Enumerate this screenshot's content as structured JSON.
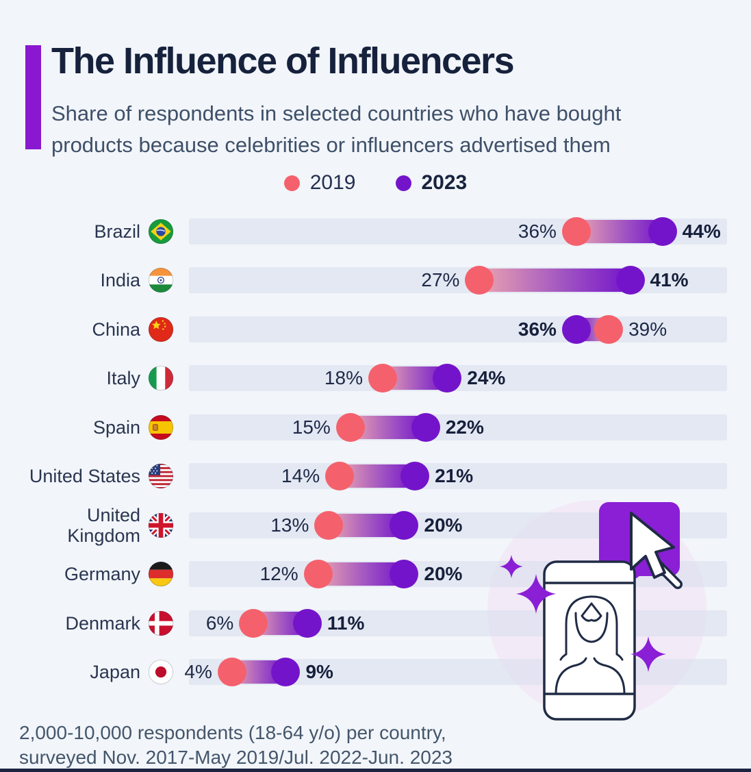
{
  "header": {
    "title": "The Influence of Influencers",
    "subtitle_line1": "Share of respondents in selected countries who have bought",
    "subtitle_line2": "products because celebrities or influencers advertised them",
    "accent_color": "#8a18d0"
  },
  "legend": {
    "items": [
      {
        "label": "2019",
        "color": "#f4616c"
      },
      {
        "label": "2023",
        "color": "#7414ca"
      }
    ]
  },
  "chart_data": {
    "type": "dumbbell",
    "title": "The Influence of Influencers",
    "unit": "%",
    "xlim": [
      0,
      50
    ],
    "grid": false,
    "legend_position": "top-center",
    "categories": [
      "Brazil",
      "India",
      "China",
      "Italy",
      "Spain",
      "United States",
      "United Kingdom",
      "Germany",
      "Denmark",
      "Japan"
    ],
    "series": [
      {
        "name": "2019",
        "color": "#f4616c",
        "values": [
          36,
          27,
          39,
          18,
          15,
          14,
          13,
          12,
          6,
          4
        ]
      },
      {
        "name": "2023",
        "color": "#7414ca",
        "values": [
          44,
          41,
          36,
          24,
          22,
          21,
          20,
          20,
          11,
          9
        ]
      }
    ],
    "rows": [
      {
        "country": "Brazil",
        "flag": "brazil",
        "v2019": 36,
        "v2023": 44
      },
      {
        "country": "India",
        "flag": "india",
        "v2019": 27,
        "v2023": 41
      },
      {
        "country": "China",
        "flag": "china",
        "v2019": 39,
        "v2023": 36
      },
      {
        "country": "Italy",
        "flag": "italy",
        "v2019": 18,
        "v2023": 24
      },
      {
        "country": "Spain",
        "flag": "spain",
        "v2019": 15,
        "v2023": 22
      },
      {
        "country": "United States",
        "flag": "us",
        "v2019": 14,
        "v2023": 21
      },
      {
        "country": "United\nKingdom",
        "flag": "uk",
        "v2019": 13,
        "v2023": 20
      },
      {
        "country": "Germany",
        "flag": "germany",
        "v2019": 12,
        "v2023": 20
      },
      {
        "country": "Denmark",
        "flag": "denmark",
        "v2019": 6,
        "v2023": 11
      },
      {
        "country": "Japan",
        "flag": "japan",
        "v2019": 4,
        "v2023": 9
      }
    ]
  },
  "footer": {
    "line1": "2,000-10,000 respondents (18-64 y/o) per country,",
    "line2": "surveyed Nov. 2017-May 2019/Jul. 2022-Jun. 2023"
  },
  "colors": {
    "background": "#f2f5f9",
    "track": "#e8ecf4",
    "dot_2019": "#f4616c",
    "dot_2023": "#7414ca",
    "title_text": "#16213c",
    "subtitle_text": "#3e5069",
    "illustration_purple": "#8a1fd6",
    "illustration_circle": "#f2eaf6",
    "bottom_bar": "#1c2440"
  }
}
